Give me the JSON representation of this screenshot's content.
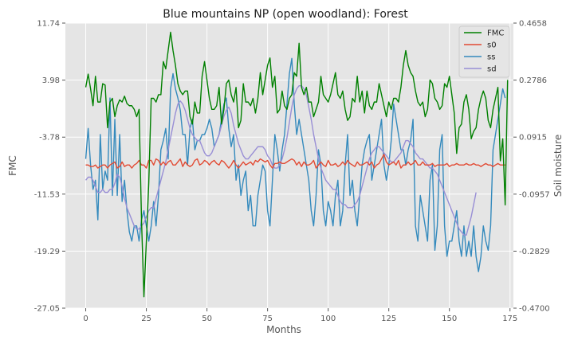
{
  "chart_data": {
    "type": "line",
    "title": "Blue mountains NP (open woodland): Forest",
    "xlabel": "Months",
    "ylabel_left": "FMC",
    "ylabel_right": "Soil moisture",
    "xlim": [
      -8.4,
      176.4
    ],
    "xticks": [
      "0",
      "25",
      "50",
      "75",
      "100",
      "125",
      "150",
      "175"
    ],
    "ylim_left": [
      -27.05,
      11.74
    ],
    "yticks_left": [
      "11.74",
      "3.98",
      "-3.78",
      "-11.53",
      "-19.29",
      "-27.05"
    ],
    "ylim_right": [
      -0.47,
      0.4658
    ],
    "yticks_right": [
      "0.4658",
      "0.2786",
      "0.0915",
      "-0.0957",
      "-0.2829",
      "-0.4700"
    ],
    "grid": true,
    "legend_position": "top-right",
    "series": [
      {
        "name": "FMC",
        "axis": "left",
        "color": "#008000",
        "values": [
          3.0,
          4.8,
          2.8,
          0.5,
          4.5,
          1.0,
          1.0,
          3.5,
          3.3,
          -2.5,
          1.0,
          1.5,
          -1.0,
          0.5,
          1.3,
          1.0,
          1.8,
          0.8,
          0.5,
          0.5,
          0.0,
          -1.0,
          0.0,
          -15.0,
          -25.5,
          -18.0,
          -10.0,
          1.5,
          1.5,
          1.0,
          2.0,
          2.0,
          6.5,
          5.5,
          8.0,
          10.5,
          8.0,
          6.0,
          3.5,
          2.5,
          2.0,
          2.5,
          2.5,
          -1.0,
          -2.0,
          1.0,
          -0.5,
          -0.5,
          4.5,
          6.5,
          4.0,
          1.5,
          0.0,
          0.0,
          0.5,
          3.0,
          -2.0,
          0.0,
          3.5,
          4.0,
          2.0,
          1.0,
          3.0,
          -2.5,
          -1.5,
          3.5,
          1.0,
          1.0,
          0.5,
          1.5,
          -0.5,
          1.5,
          5.0,
          2.0,
          4.0,
          6.0,
          7.0,
          3.0,
          4.5,
          -0.5,
          0.0,
          2.5,
          0.5,
          0.0,
          1.5,
          2.0,
          5.0,
          4.5,
          9.0,
          3.0,
          2.0,
          3.0,
          1.0,
          1.0,
          -1.0,
          0.0,
          1.0,
          4.5,
          2.0,
          1.5,
          1.0,
          2.0,
          3.5,
          5.0,
          2.0,
          1.5,
          2.5,
          0.0,
          -1.5,
          -1.0,
          1.5,
          1.0,
          4.5,
          1.0,
          2.5,
          -0.5,
          2.5,
          0.5,
          0.0,
          1.0,
          1.0,
          3.5,
          2.0,
          0.5,
          -1.0,
          1.0,
          0.0,
          1.5,
          1.5,
          1.0,
          3.0,
          6.0,
          8.0,
          6.0,
          5.0,
          4.5,
          2.5,
          1.0,
          0.5,
          1.0,
          -1.0,
          0.0,
          4.0,
          3.5,
          1.5,
          1.0,
          0.0,
          0.5,
          3.5,
          3.0,
          4.5,
          2.0,
          -0.5,
          -6.0,
          -2.5,
          -2.0,
          1.0,
          2.0,
          0.0,
          -4.0,
          -3.0,
          -2.5,
          0.0,
          1.5,
          2.5,
          1.5,
          -1.5,
          -2.5,
          0.0,
          1.5,
          3.0,
          -7.0,
          -4.0,
          -13.0,
          4.0
        ]
      },
      {
        "name": "s0",
        "axis": "right",
        "color": "#E24A33",
        "values": [
          0.0,
          0.0,
          -0.005,
          -0.005,
          0.0,
          -0.01,
          -0.005,
          0.0,
          0.0,
          -0.01,
          0.0,
          0.005,
          0.01,
          -0.01,
          -0.005,
          0.01,
          -0.005,
          0.0,
          0.0,
          -0.01,
          0.0,
          0.005,
          0.015,
          0.0,
          0.0,
          -0.01,
          0.015,
          0.015,
          0.0,
          0.02,
          0.015,
          0.0,
          0.01,
          0.0,
          0.01,
          0.015,
          0.0,
          0.0,
          0.01,
          0.02,
          -0.005,
          0.01,
          0.0,
          -0.005,
          0.0,
          0.015,
          0.02,
          0.0,
          0.005,
          0.015,
          0.01,
          0.0,
          0.01,
          0.015,
          0.005,
          0.0,
          0.015,
          0.01,
          0.0,
          -0.01,
          0.0,
          0.015,
          0.0,
          -0.01,
          0.0,
          0.01,
          0.0,
          0.005,
          0.01,
          0.0,
          0.015,
          0.01,
          0.02,
          0.015,
          0.01,
          0.015,
          0.0,
          -0.01,
          0.005,
          0.005,
          0.01,
          0.005,
          0.005,
          0.01,
          0.015,
          0.02,
          0.015,
          0.0,
          0.01,
          -0.005,
          0.01,
          0.0,
          0.0,
          0.005,
          0.015,
          -0.01,
          0.0,
          0.01,
          0.0,
          -0.005,
          0.015,
          0.0,
          0.0,
          0.005,
          -0.005,
          0.0,
          0.01,
          0.0,
          0.015,
          0.005,
          0.0,
          -0.005,
          0.01,
          0.0,
          0.0,
          0.005,
          0.01,
          0.0,
          0.01,
          -0.01,
          0.0,
          0.005,
          0.02,
          0.035,
          0.01,
          0.0,
          0.005,
          0.01,
          0.0,
          0.015,
          -0.01,
          0.0,
          0.0,
          0.01,
          0.0,
          0.005,
          0.015,
          0.0,
          0.0,
          0.01,
          0.0,
          0.0,
          0.0,
          0.005,
          -0.005,
          0.0,
          0.0,
          0.0,
          0.0,
          0.005,
          -0.005,
          0.0,
          0.0,
          0.005,
          0.0,
          0.0,
          0.0,
          0.005,
          0.0,
          0.0,
          0.005,
          0.0,
          0.0,
          -0.005,
          0.0,
          0.005,
          0.0,
          0.0,
          -0.005,
          0.0,
          0.005,
          0.0,
          0.0,
          0.0
        ]
      },
      {
        "name": "ss",
        "axis": "right",
        "color": "#348ABD",
        "values": [
          0.02,
          0.12,
          0.0,
          -0.08,
          -0.05,
          -0.18,
          0.1,
          -0.08,
          -0.02,
          -0.05,
          0.22,
          -0.1,
          0.15,
          -0.1,
          0.1,
          -0.12,
          -0.05,
          -0.15,
          -0.22,
          -0.25,
          -0.2,
          -0.2,
          -0.25,
          -0.18,
          -0.15,
          -0.2,
          -0.25,
          -0.2,
          -0.12,
          -0.2,
          -0.1,
          0.05,
          0.08,
          0.12,
          0.02,
          0.25,
          0.3,
          0.25,
          0.22,
          0.18,
          0.1,
          0.1,
          0.0,
          0.12,
          0.15,
          0.05,
          0.08,
          0.08,
          0.1,
          0.1,
          0.12,
          0.15,
          0.12,
          0.06,
          0.08,
          0.1,
          0.15,
          0.2,
          0.22,
          0.12,
          0.06,
          0.1,
          -0.05,
          0.0,
          -0.1,
          -0.05,
          -0.02,
          -0.15,
          -0.1,
          -0.2,
          -0.2,
          -0.1,
          -0.05,
          0.0,
          -0.02,
          -0.15,
          -0.2,
          -0.05,
          0.1,
          0.05,
          -0.02,
          0.05,
          0.1,
          0.2,
          0.3,
          0.35,
          0.2,
          0.1,
          0.15,
          0.1,
          0.05,
          0.0,
          -0.05,
          -0.15,
          -0.2,
          -0.1,
          0.05,
          0.0,
          -0.15,
          -0.2,
          -0.12,
          -0.15,
          -0.2,
          -0.1,
          -0.05,
          -0.2,
          -0.15,
          0.0,
          0.1,
          -0.1,
          -0.05,
          -0.15,
          -0.2,
          -0.1,
          0.0,
          0.05,
          0.08,
          0.1,
          -0.05,
          0.0,
          0.05,
          0.1,
          0.15,
          0.0,
          -0.05,
          0.0,
          0.08,
          0.2,
          0.15,
          0.1,
          0.05,
          0.05,
          0.0,
          0.05,
          0.08,
          0.15,
          -0.2,
          -0.25,
          -0.1,
          -0.15,
          -0.2,
          -0.25,
          -0.05,
          0.0,
          -0.28,
          -0.2,
          0.05,
          0.1,
          -0.2,
          -0.3,
          -0.25,
          -0.25,
          -0.2,
          -0.15,
          -0.25,
          -0.3,
          -0.2,
          -0.3,
          -0.25,
          -0.3,
          -0.2,
          -0.3,
          -0.35,
          -0.3,
          -0.2,
          -0.25,
          -0.28,
          -0.2,
          0.05,
          0.1,
          0.15,
          0.2,
          0.25,
          0.22
        ]
      },
      {
        "name": "sd",
        "axis": "right",
        "color": "#988ED5",
        "values": [
          -0.05,
          -0.04,
          -0.04,
          -0.05,
          -0.07,
          -0.09,
          -0.09,
          -0.08,
          -0.09,
          -0.09,
          -0.08,
          -0.08,
          -0.06,
          -0.03,
          -0.04,
          -0.07,
          -0.11,
          -0.14,
          -0.16,
          -0.18,
          -0.2,
          -0.21,
          -0.21,
          -0.2,
          -0.19,
          -0.17,
          -0.15,
          -0.14,
          -0.14,
          -0.11,
          -0.08,
          -0.05,
          -0.02,
          0.01,
          0.05,
          0.09,
          0.13,
          0.17,
          0.2,
          0.21,
          0.2,
          0.18,
          0.15,
          0.12,
          0.1,
          0.09,
          0.08,
          0.08,
          0.06,
          0.04,
          0.03,
          0.03,
          0.04,
          0.06,
          0.08,
          0.1,
          0.13,
          0.16,
          0.18,
          0.19,
          0.17,
          0.13,
          0.1,
          0.07,
          0.05,
          0.03,
          0.02,
          0.02,
          0.03,
          0.04,
          0.05,
          0.06,
          0.06,
          0.06,
          0.05,
          0.03,
          0.02,
          0.0,
          -0.01,
          -0.01,
          0.0,
          0.02,
          0.05,
          0.09,
          0.14,
          0.19,
          0.23,
          0.25,
          0.26,
          0.26,
          0.25,
          0.23,
          0.19,
          0.15,
          0.1,
          0.06,
          0.02,
          -0.01,
          -0.03,
          -0.05,
          -0.06,
          -0.07,
          -0.08,
          -0.08,
          -0.1,
          -0.12,
          -0.13,
          -0.13,
          -0.14,
          -0.14,
          -0.14,
          -0.13,
          -0.12,
          -0.1,
          -0.07,
          -0.04,
          -0.01,
          0.02,
          0.04,
          0.05,
          0.06,
          0.06,
          0.05,
          0.04,
          0.03,
          0.02,
          0.01,
          0.01,
          0.02,
          0.03,
          0.04,
          0.06,
          0.08,
          0.08,
          0.07,
          0.06,
          0.04,
          0.03,
          0.02,
          0.02,
          0.01,
          0.0,
          -0.01,
          -0.01,
          -0.02,
          -0.03,
          -0.05,
          -0.07,
          -0.09,
          -0.11,
          -0.13,
          -0.15,
          -0.17,
          -0.19,
          -0.21,
          -0.22,
          -0.23,
          -0.23,
          -0.2,
          -0.17,
          -0.13,
          -0.09
        ]
      }
    ]
  }
}
